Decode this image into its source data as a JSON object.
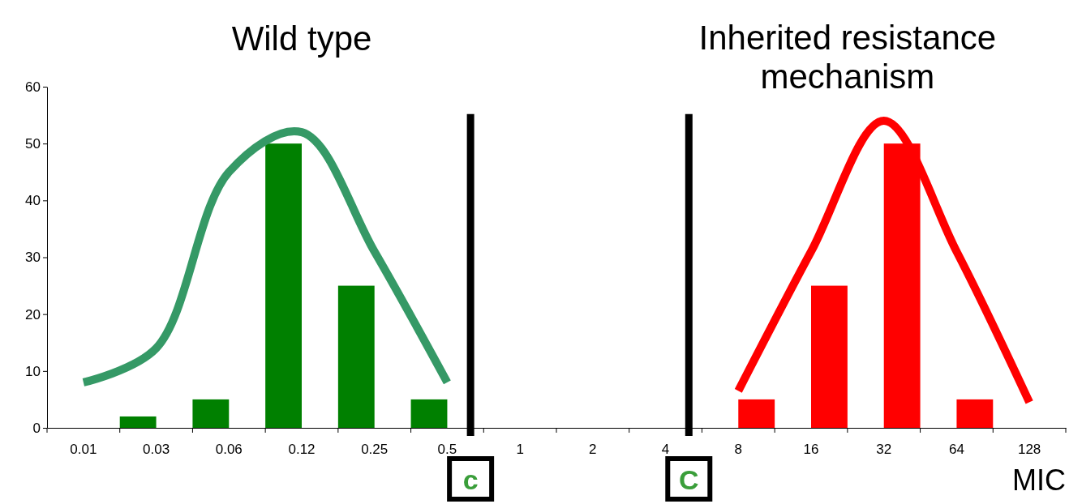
{
  "chart_data": {
    "type": "bar",
    "xlabel": "MIC",
    "categories": [
      "0.01",
      "0.03",
      "0.06",
      "0.12",
      "0.25",
      "0.5",
      "1",
      "2",
      "4",
      "8",
      "16",
      "32",
      "64",
      "128"
    ],
    "series": [
      {
        "color": "#008000",
        "values": [
          null,
          2,
          5,
          50,
          25,
          5,
          null,
          null,
          null,
          null,
          null,
          null,
          null,
          null
        ]
      },
      {
        "color": "#ff0000",
        "values": [
          null,
          null,
          null,
          null,
          null,
          null,
          null,
          null,
          null,
          5,
          25,
          50,
          5,
          null
        ]
      },
      {
        "type": "line",
        "color": "#359966",
        "values": [
          8,
          14,
          45,
          52,
          31,
          8,
          null,
          null,
          null,
          null,
          null,
          null,
          null,
          null
        ]
      },
      {
        "type": "line",
        "color": "#ff0000",
        "values": [
          null,
          null,
          null,
          null,
          null,
          null,
          null,
          null,
          null,
          6.5,
          31,
          54,
          31,
          4.5
        ]
      }
    ],
    "annotations": [
      "Wild type",
      "Inherited resistance mechanism"
    ],
    "ylim": [
      0,
      60
    ],
    "yticks": [
      0,
      10,
      20,
      30,
      40,
      50,
      60
    ],
    "ref_lines": [
      {
        "axis": "x",
        "value": "0.5",
        "label": "c",
        "color": "#000000"
      },
      {
        "axis": "x",
        "value": "4",
        "label": "C",
        "color": "#000000"
      }
    ]
  }
}
